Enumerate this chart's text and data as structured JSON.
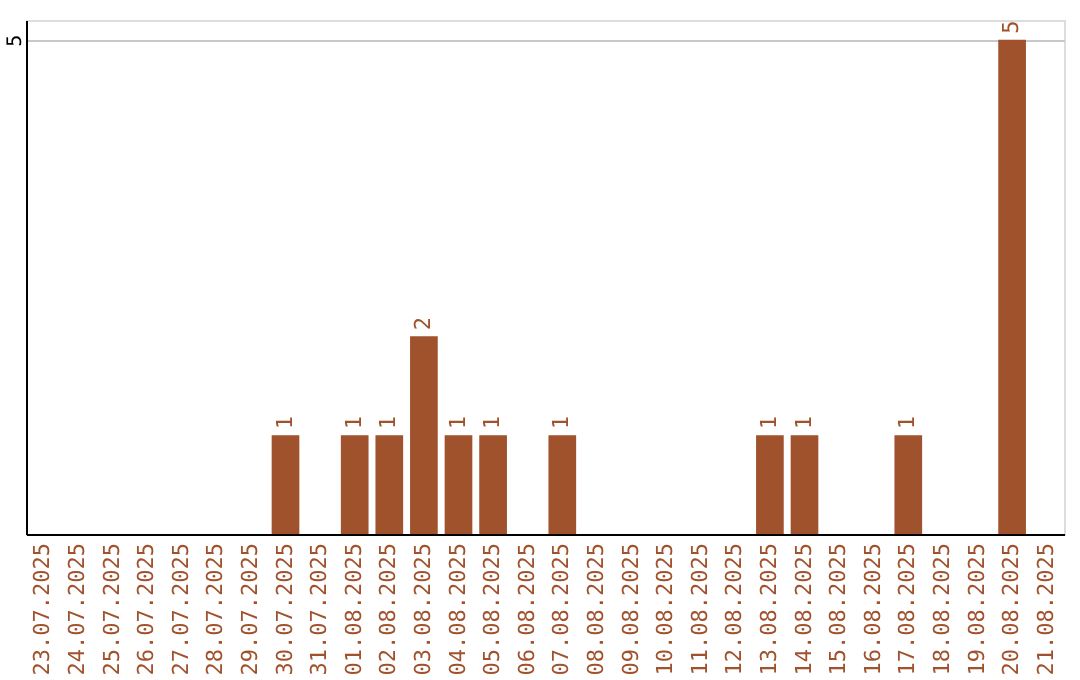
{
  "chart_data": {
    "type": "bar",
    "categories": [
      "23.07.2025",
      "24.07.2025",
      "25.07.2025",
      "26.07.2025",
      "27.07.2025",
      "28.07.2025",
      "29.07.2025",
      "30.07.2025",
      "31.07.2025",
      "01.08.2025",
      "02.08.2025",
      "03.08.2025",
      "04.08.2025",
      "05.08.2025",
      "06.08.2025",
      "07.08.2025",
      "08.08.2025",
      "09.08.2025",
      "10.08.2025",
      "11.08.2025",
      "12.08.2025",
      "13.08.2025",
      "14.08.2025",
      "15.08.2025",
      "16.08.2025",
      "17.08.2025",
      "18.08.2025",
      "19.08.2025",
      "20.08.2025",
      "21.08.2025"
    ],
    "values": [
      0,
      0,
      0,
      0,
      0,
      0,
      0,
      1,
      0,
      1,
      1,
      2,
      1,
      1,
      0,
      1,
      0,
      0,
      0,
      0,
      0,
      1,
      1,
      0,
      0,
      1,
      0,
      0,
      5,
      0
    ],
    "value_labels": [
      null,
      null,
      null,
      null,
      null,
      null,
      null,
      "1",
      null,
      "1",
      "1",
      "2",
      "1",
      "1",
      null,
      "1",
      null,
      null,
      null,
      null,
      null,
      "1",
      "1",
      null,
      null,
      "1",
      null,
      null,
      "5",
      null
    ],
    "color": "#a0522d",
    "ylim": [
      0,
      5.2
    ],
    "yticks": [
      5
    ],
    "grid": "y"
  }
}
